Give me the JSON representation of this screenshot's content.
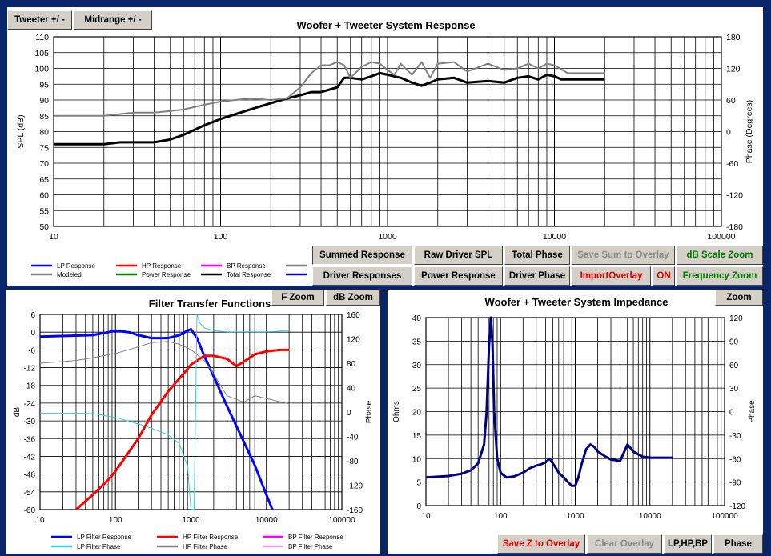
{
  "top": {
    "buttons": {
      "tweeter": "Tweeter  +/ -",
      "midrange": "Midrange  +/ -"
    },
    "title": "Woofer + Tweeter    System Response",
    "ylabel_left": "SPL (dB)",
    "ylabel_right": "Phase (Degrees)",
    "y_ticks": [
      "110",
      "105",
      "100",
      "95",
      "90",
      "85",
      "80",
      "75",
      "70",
      "65",
      "60",
      "55",
      "50"
    ],
    "y2_ticks": [
      "180",
      "120",
      "60",
      "0",
      "-60",
      "-120",
      "-180"
    ],
    "x_ticks": [
      "10",
      "100",
      "1000",
      "10000",
      "100000"
    ],
    "legend": [
      {
        "label": "LP Response",
        "color": "#0000ff"
      },
      {
        "label": "HP Response",
        "color": "#ff0000"
      },
      {
        "label": "BP Response",
        "color": "#ff00ff"
      },
      {
        "label": "",
        "color": "#808080"
      },
      {
        "label": "Modeled",
        "color": "#808080"
      },
      {
        "label": "Power Response",
        "color": "#008000"
      },
      {
        "label": "Total Response",
        "color": "#000000"
      },
      {
        "label": "",
        "color": "#0000aa"
      }
    ],
    "controls": {
      "summed": "Summed Response",
      "raw": "Raw Driver SPL",
      "total_phase": "Total Phase",
      "save_sum": "Save Sum to Overlay",
      "db_zoom": "dB Scale Zoom",
      "driver_resp": "Driver Responses",
      "power_resp": "Power Response",
      "driver_phase": "Driver Phase",
      "import": "ImportOverlay",
      "on": "ON",
      "freq_zoom": "Frequency Zoom"
    }
  },
  "filter": {
    "title": "Filter Transfer Functions",
    "buttons": {
      "fzoom": "F Zoom",
      "dbzoom": "dB Zoom"
    },
    "ylabel_left": "dB",
    "ylabel_right": "Phase",
    "y_ticks": [
      "6",
      "0",
      "-6",
      "-12",
      "-18",
      "-24",
      "-30",
      "-36",
      "-42",
      "-48",
      "-54",
      "-60"
    ],
    "y2_ticks": [
      "160",
      "120",
      "80",
      "40",
      "0",
      "-40",
      "-80",
      "-120",
      "-160"
    ],
    "x_ticks": [
      "10",
      "100",
      "1000",
      "10000",
      "100000"
    ],
    "legend": [
      {
        "label": "LP Filter Response",
        "color": "#0000ff"
      },
      {
        "label": "HP Filter Response",
        "color": "#ff0000"
      },
      {
        "label": "BP Filter Response",
        "color": "#ff00ff"
      },
      {
        "label": "LP Filter Phase",
        "color": "#40c8e0"
      },
      {
        "label": "HP Filter Phase",
        "color": "#808080"
      },
      {
        "label": "BP Filter Phase",
        "color": "#e0a0e0"
      }
    ]
  },
  "impedance": {
    "title": "Woofer + Tweeter    System Impedance",
    "buttons": {
      "zoom": "Zoom",
      "save_z": "Save Z to Overlay",
      "clear": "Clear Overlay",
      "lphpbp": "LP,HP,BP",
      "phase": "Phase"
    },
    "ylabel_left": "Ohms",
    "ylabel_right": "Phase",
    "y_ticks": [
      "40",
      "35",
      "30",
      "25",
      "20",
      "15",
      "10",
      "5",
      "0"
    ],
    "y2_ticks": [
      "120",
      "90",
      "60",
      "30",
      "0",
      "-30",
      "-60",
      "-90",
      "-120"
    ],
    "x_ticks": [
      "10",
      "100",
      "1000",
      "10000",
      "100000"
    ]
  },
  "chart_data": [
    {
      "type": "line",
      "title": "Woofer + Tweeter    System Response",
      "xlabel": "",
      "ylabel": "SPL (dB)",
      "y2label": "Phase (Degrees)",
      "xscale": "log",
      "xlim": [
        10,
        100000
      ],
      "ylim": [
        50,
        110
      ],
      "y2lim": [
        -180,
        180
      ],
      "grid": true,
      "legend_position": "bottom",
      "series": [
        {
          "name": "Total Response",
          "color": "#000000",
          "x": [
            10,
            20,
            25,
            30,
            40,
            50,
            60,
            80,
            100,
            150,
            200,
            250,
            300,
            350,
            400,
            500,
            550,
            600,
            700,
            800,
            900,
            1000,
            1200,
            1400,
            1600,
            1800,
            2000,
            2500,
            3000,
            4000,
            5000,
            6000,
            7000,
            8000,
            9000,
            10000,
            11000,
            12000,
            15000,
            20000
          ],
          "y": [
            76,
            76,
            76.6,
            76.6,
            76.6,
            77.5,
            79,
            82,
            84,
            87,
            89,
            90.5,
            91.5,
            92.5,
            92.5,
            94,
            97,
            97,
            96.5,
            97.5,
            98.5,
            98,
            97,
            95.5,
            94.5,
            95.5,
            96.5,
            97,
            95.5,
            96,
            95.5,
            97,
            97.5,
            96.5,
            98,
            97.5,
            96.5,
            96.5,
            96.5,
            96.5
          ]
        },
        {
          "name": "Modeled",
          "color": "#808080",
          "x": [
            10,
            20,
            30,
            40,
            50,
            60,
            80,
            100,
            150,
            200,
            250,
            300,
            350,
            400,
            450,
            500,
            550,
            600,
            700,
            800,
            900,
            1000,
            1100,
            1200,
            1400,
            1600,
            1800,
            2000,
            2500,
            3000,
            4000,
            5000,
            6000,
            7000,
            8000,
            9000,
            10000,
            12000,
            15000,
            20000
          ],
          "y": [
            85,
            85,
            86,
            86,
            86.5,
            87,
            88.5,
            89.5,
            90.5,
            90,
            90.5,
            94,
            98.5,
            101,
            101,
            102,
            101,
            97,
            100.5,
            102,
            101.5,
            99.5,
            98,
            101.5,
            98,
            102,
            97,
            101.5,
            102,
            99,
            101.5,
            99.5,
            100,
            101.5,
            100,
            101.5,
            101,
            98.5,
            98.5,
            98.5
          ]
        }
      ]
    },
    {
      "type": "line",
      "title": "Filter Transfer Functions",
      "xlabel": "",
      "ylabel": "dB",
      "y2label": "Phase",
      "xscale": "log",
      "xlim": [
        10,
        100000
      ],
      "ylim": [
        -60,
        6
      ],
      "y2lim": [
        -180,
        180
      ],
      "grid": true,
      "series": [
        {
          "name": "LP Filter Response",
          "color": "#0000ff",
          "x": [
            10,
            50,
            80,
            100,
            150,
            200,
            300,
            500,
            700,
            900,
            1000,
            1200,
            1500,
            2000,
            3000,
            5000,
            7000,
            10000,
            12000
          ],
          "y": [
            -1.5,
            -1,
            0,
            0.5,
            0,
            -1,
            -2,
            -2,
            -1,
            0.5,
            1,
            -2,
            -8,
            -15,
            -25,
            -37,
            -45,
            -55,
            -60
          ]
        },
        {
          "name": "HP Filter Response",
          "color": "#ff0000",
          "x": [
            30,
            50,
            80,
            100,
            200,
            300,
            500,
            800,
            1000,
            1500,
            2000,
            3000,
            4000,
            5000,
            7000,
            10000,
            15000,
            20000
          ],
          "y": [
            -60,
            -55,
            -50,
            -47,
            -36,
            -28,
            -20,
            -14,
            -11,
            -8,
            -8,
            -9,
            -11.5,
            -10,
            -7.5,
            -6.5,
            -6,
            -6
          ]
        },
        {
          "name": "LP Filter Phase",
          "color": "#40c8e0",
          "x": [
            10,
            30,
            50,
            100,
            200,
            300,
            500,
            700,
            900,
            1000,
            1100,
            1200,
            1300,
            1500,
            2000,
            3000,
            5000,
            10000,
            20000
          ],
          "y": [
            -2,
            -2,
            -3,
            -10,
            -22,
            -30,
            -42,
            -58,
            -100,
            -180,
            -180,
            180,
            165,
            155,
            150,
            148,
            148,
            148,
            150
          ]
        },
        {
          "name": "HP Filter Phase",
          "color": "#808080",
          "x": [
            10,
            30,
            50,
            100,
            200,
            300,
            500,
            700,
            1000,
            1500,
            2000,
            3000,
            5000,
            7000,
            10000,
            20000
          ],
          "y": [
            90,
            95,
            100,
            108,
            120,
            128,
            130,
            125,
            115,
            95,
            70,
            30,
            18,
            30,
            25,
            15
          ]
        }
      ]
    },
    {
      "type": "line",
      "title": "Woofer + Tweeter    System Impedance",
      "xlabel": "",
      "ylabel": "Ohms",
      "y2label": "Phase",
      "xscale": "log",
      "xlim": [
        10,
        100000
      ],
      "ylim": [
        0,
        40
      ],
      "y2lim": [
        -120,
        120
      ],
      "grid": true,
      "series": [
        {
          "name": "Impedance",
          "color": "#000080",
          "x": [
            10,
            20,
            30,
            40,
            50,
            60,
            65,
            70,
            74,
            78,
            82,
            90,
            100,
            120,
            150,
            200,
            250,
            300,
            350,
            400,
            450,
            500,
            550,
            600,
            700,
            800,
            900,
            1000,
            1100,
            1200,
            1400,
            1600,
            1800,
            2000,
            2500,
            3000,
            4000,
            5000,
            6000,
            8000,
            10000,
            15000,
            20000
          ],
          "y": [
            6,
            6.3,
            6.8,
            7.5,
            9,
            13,
            20,
            34,
            40,
            34,
            20,
            10,
            7,
            6,
            6.2,
            7,
            8,
            8.5,
            8.8,
            9.2,
            10,
            9,
            8,
            7,
            6,
            5,
            4.2,
            4.2,
            6,
            8.5,
            12,
            13,
            12.5,
            11.5,
            10.5,
            9.8,
            9.5,
            13,
            11.5,
            10.4,
            10.2,
            10.2,
            10.2
          ]
        }
      ]
    }
  ]
}
